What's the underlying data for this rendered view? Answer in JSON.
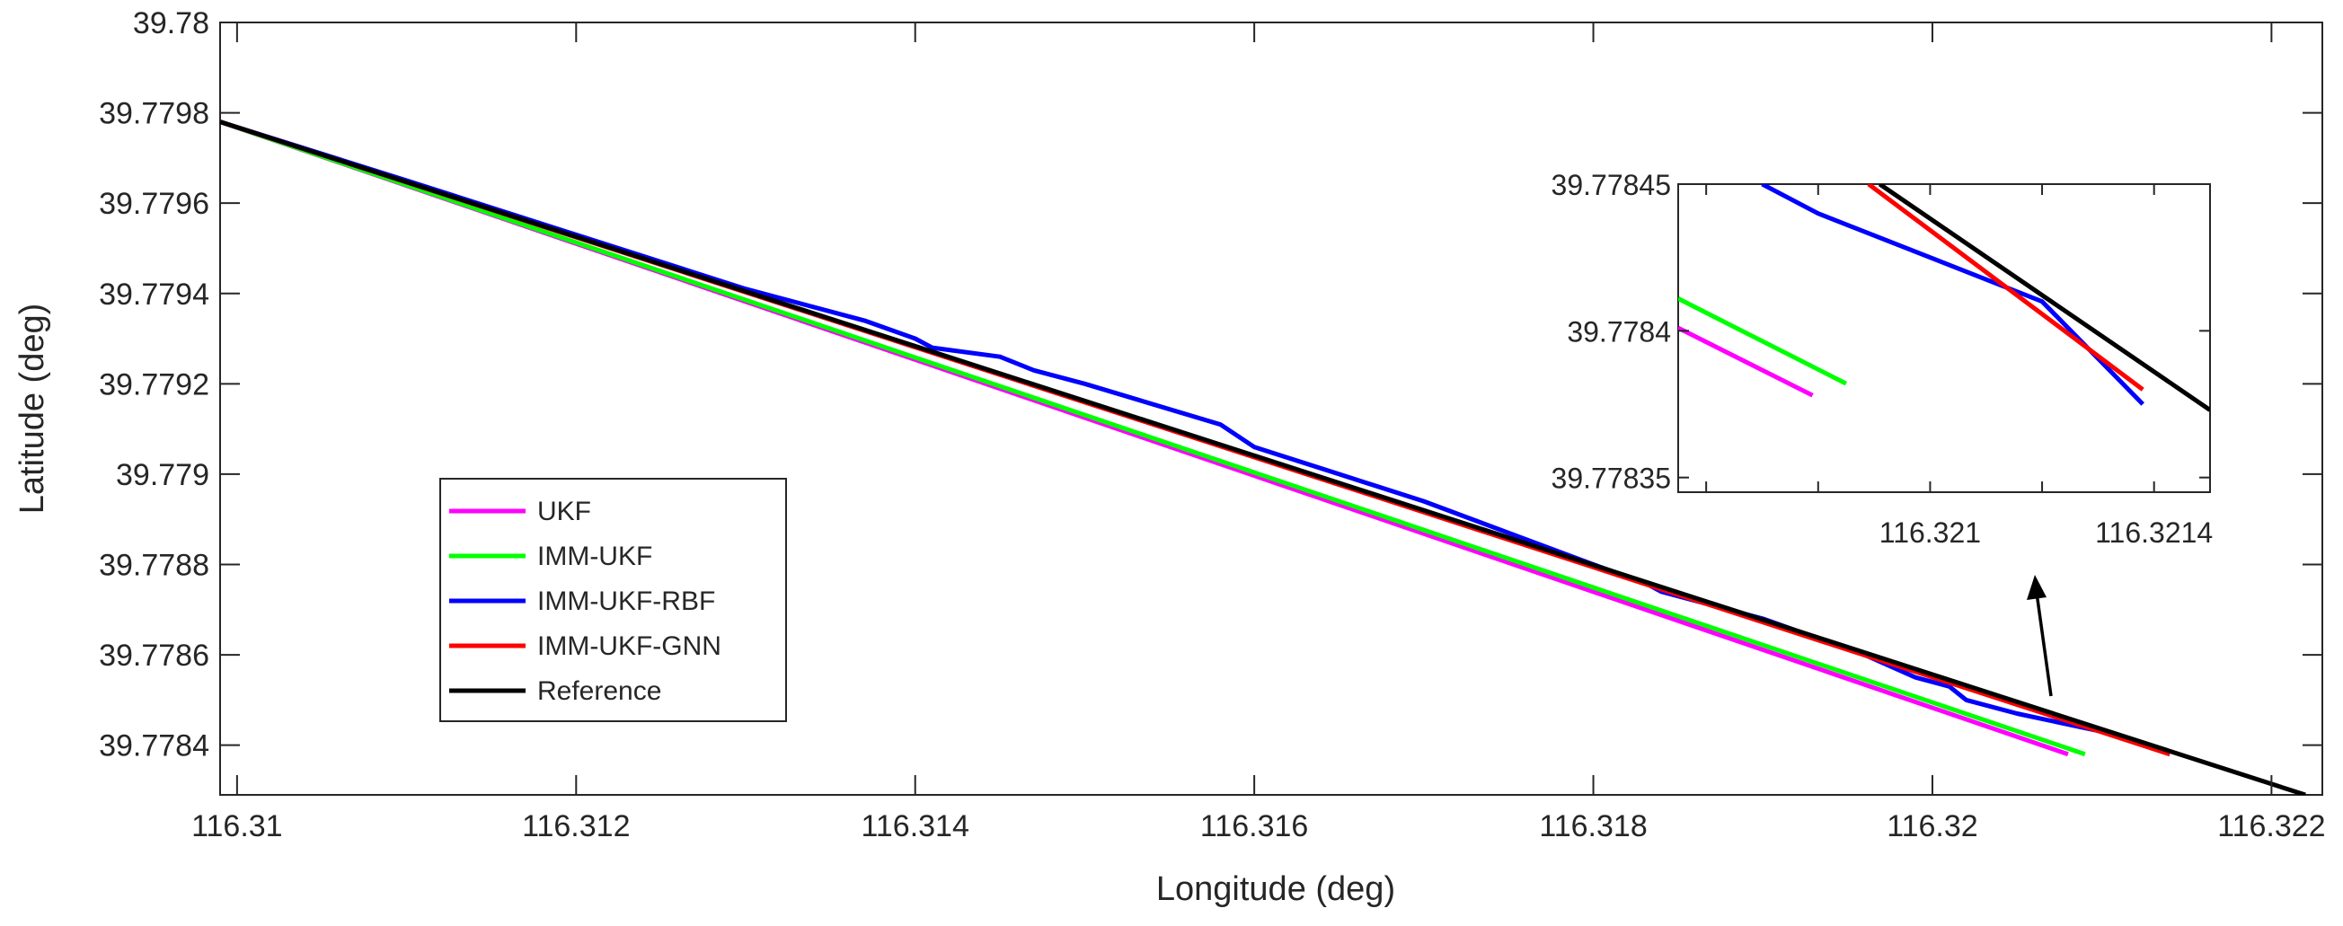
{
  "chart_data": [
    {
      "type": "line",
      "panel": "main",
      "xlabel": "Longitude (deg)",
      "ylabel": "Latitude (deg)",
      "xlim": [
        116.3099,
        116.3223
      ],
      "ylim": [
        39.77829,
        39.78
      ],
      "xticks": [
        116.31,
        116.312,
        116.314,
        116.316,
        116.318,
        116.32,
        116.322
      ],
      "xtick_labels": [
        "116.31",
        "116.312",
        "116.314",
        "116.316",
        "116.318",
        "116.32",
        "116.322"
      ],
      "yticks": [
        39.7784,
        39.7786,
        39.7788,
        39.779,
        39.7792,
        39.7794,
        39.7796,
        39.7798,
        39.78
      ],
      "ytick_labels": [
        "39.7784",
        "39.7786",
        "39.7788",
        "39.779",
        "39.7792",
        "39.7794",
        "39.7796",
        "39.7798",
        "39.78"
      ],
      "grid": false,
      "legend_position": "lower-left",
      "series": [
        {
          "name": "UKF",
          "color": "#ff00ff",
          "x": [
            116.3099,
            116.3208
          ],
          "y": [
            39.77978,
            39.77838
          ]
        },
        {
          "name": "IMM-UKF",
          "color": "#00ff00",
          "x": [
            116.3099,
            116.3209
          ],
          "y": [
            39.77978,
            39.77838
          ]
        },
        {
          "name": "IMM-UKF-RBF",
          "color": "#0000ff",
          "x": [
            116.3099,
            116.311,
            116.312,
            116.313,
            116.3137,
            116.314,
            116.3141,
            116.3145,
            116.3147,
            116.315,
            116.3158,
            116.316,
            116.3165,
            116.317,
            116.3175,
            116.318,
            116.3183,
            116.3184,
            116.3187,
            116.319,
            116.3193,
            116.3196,
            116.3199,
            116.3201,
            116.3202,
            116.3205,
            116.321,
            116.3214
          ],
          "y": [
            39.77978,
            39.77965,
            39.77953,
            39.77941,
            39.77934,
            39.7793,
            39.77928,
            39.77926,
            39.77923,
            39.7792,
            39.77911,
            39.77906,
            39.779,
            39.77894,
            39.77887,
            39.7788,
            39.77876,
            39.77874,
            39.77871,
            39.77868,
            39.77864,
            39.7786,
            39.77855,
            39.77853,
            39.7785,
            39.77847,
            39.77843,
            39.77838
          ]
        },
        {
          "name": "IMM-UKF-GNN",
          "color": "#ff0000",
          "x": [
            116.3099,
            116.3214
          ],
          "y": [
            39.77978,
            39.77838
          ]
        },
        {
          "name": "Reference",
          "color": "#000000",
          "x": [
            116.3099,
            116.3222
          ],
          "y": [
            39.77978,
            39.77829
          ]
        }
      ]
    },
    {
      "type": "line",
      "panel": "inset",
      "xlim": [
        116.32055,
        116.3215
      ],
      "ylim": [
        39.778345,
        39.77845
      ],
      "xticks": [
        116.3206,
        116.3208,
        116.321,
        116.3212,
        116.3214
      ],
      "xtick_labels": [
        "",
        "",
        "116.321",
        "",
        "116.3214"
      ],
      "yticks": [
        39.77835,
        39.7784,
        39.77845
      ],
      "ytick_labels": [
        "39.77835",
        "39.7784",
        "39.77845"
      ],
      "grid": false,
      "series": [
        {
          "name": "UKF",
          "color": "#ff00ff",
          "x": [
            116.32055,
            116.32079
          ],
          "y": [
            39.778401,
            39.778378
          ]
        },
        {
          "name": "IMM-UKF",
          "color": "#00ff00",
          "x": [
            116.32055,
            116.32085
          ],
          "y": [
            39.778411,
            39.778382
          ]
        },
        {
          "name": "IMM-UKF-RBF",
          "color": "#0000ff",
          "x": [
            116.3207,
            116.3208,
            116.3212,
            116.32138
          ],
          "y": [
            39.77845,
            39.77844,
            39.77841,
            39.778375
          ]
        },
        {
          "name": "IMM-UKF-GNN",
          "color": "#ff0000",
          "x": [
            116.32089,
            116.32138
          ],
          "y": [
            39.77845,
            39.77838
          ]
        },
        {
          "name": "Reference",
          "color": "#000000",
          "x": [
            116.32091,
            116.3215
          ],
          "y": [
            39.77845,
            39.778373
          ]
        }
      ]
    }
  ]
}
